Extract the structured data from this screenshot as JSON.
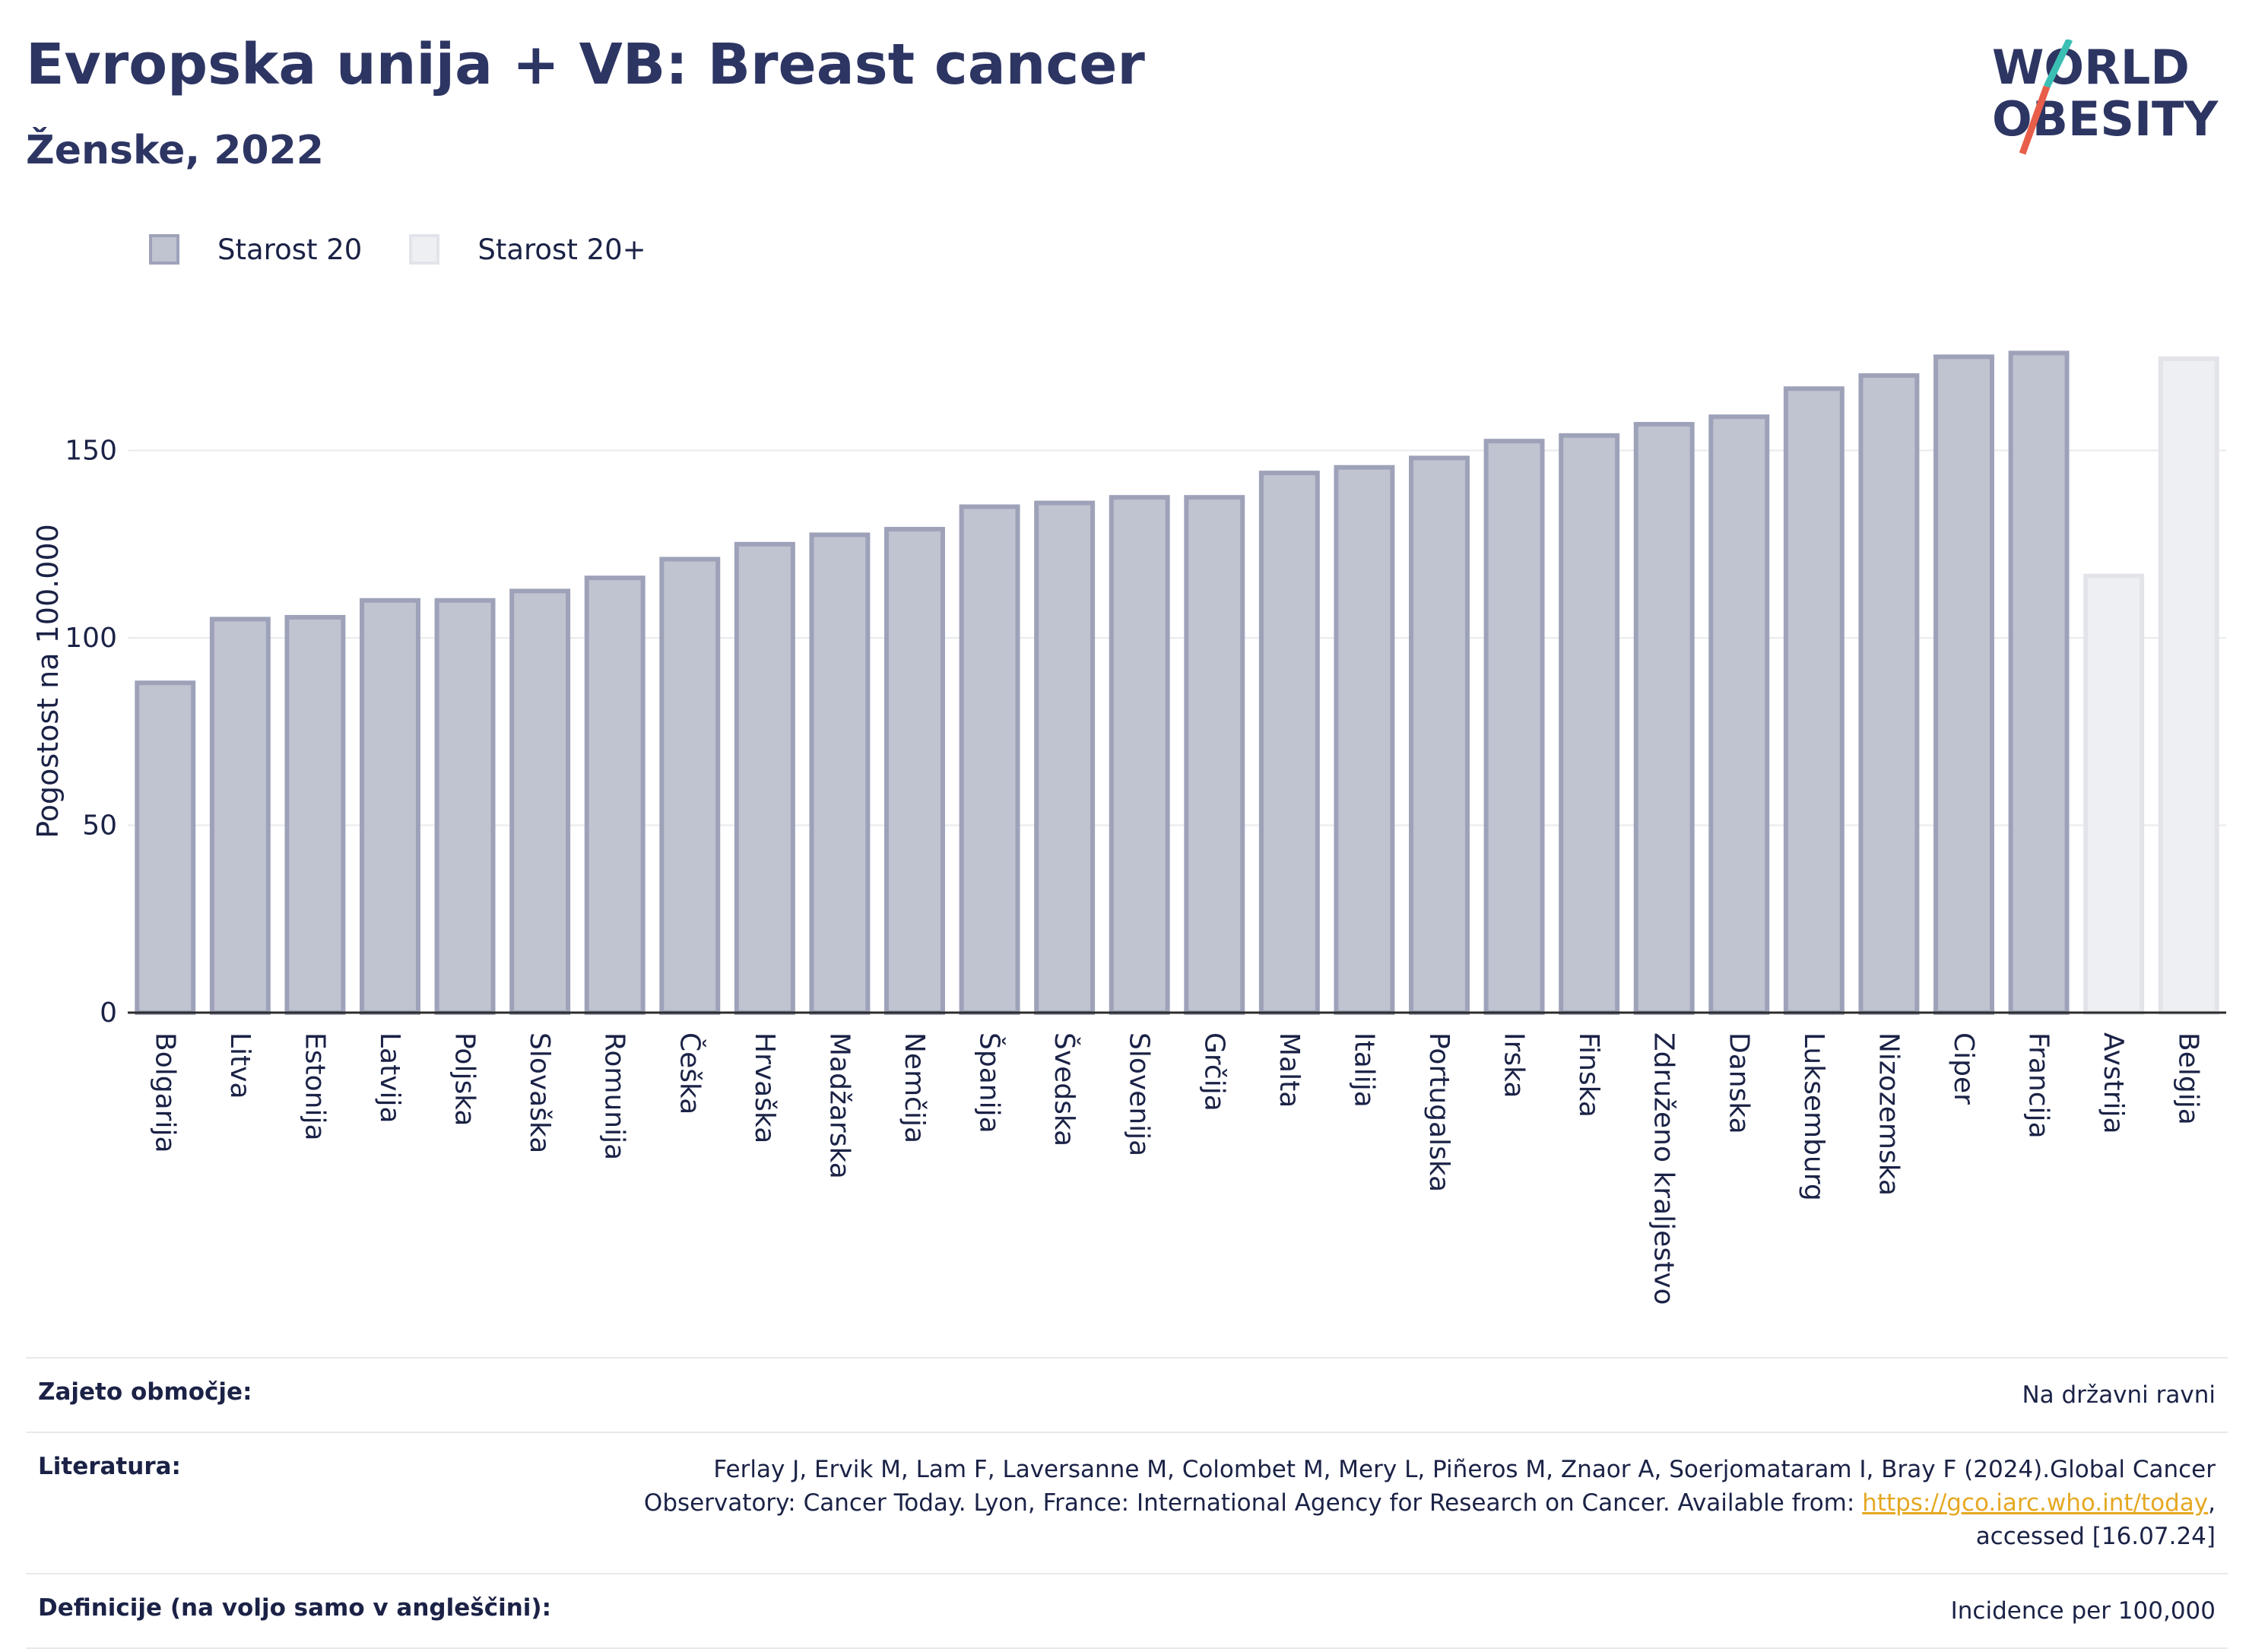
{
  "header": {
    "title": "Evropska unija + VB: Breast cancer",
    "subtitle": "Ženske, 2022",
    "logo_line1": "WORLD",
    "logo_line2": "OBESITY"
  },
  "colors": {
    "series1_fill": "#c0c3d0",
    "series1_stroke": "#9ea2b9",
    "series2_fill": "#eeeff3",
    "series2_stroke": "#e2e4ea",
    "title": "#2d3563",
    "logo_slash_top": "#3bbfb4",
    "logo_slash_bottom": "#e85e4a",
    "link": "#e5a823"
  },
  "chart_data": {
    "type": "bar",
    "title": "Evropska unija + VB: Breast cancer",
    "subtitle": "Ženske, 2022",
    "xlabel": "",
    "ylabel": "Pogostost na 100.000",
    "ylim": [
      0,
      185
    ],
    "yticks": [
      0,
      50,
      100,
      150
    ],
    "grid": true,
    "legend_position": "top-left",
    "categories": [
      "Bolgarija",
      "Litva",
      "Estonija",
      "Latvija",
      "Poljska",
      "Slovaška",
      "Romunija",
      "Češka",
      "Hrvaška",
      "Madžarska",
      "Nemčija",
      "Španija",
      "Švedska",
      "Slovenija",
      "Grčija",
      "Malta",
      "Italija",
      "Portugalska",
      "Irska",
      "Finska",
      "Združeno kraljestvo",
      "Danska",
      "Luksemburg",
      "Nizozemska",
      "Ciper",
      "Francija",
      "Avstrija",
      "Belgija"
    ],
    "series": [
      {
        "name": "Starost 20",
        "values": [
          88,
          105,
          105.5,
          110,
          110,
          112.5,
          116,
          121,
          125,
          127.5,
          129,
          135,
          136,
          137.5,
          137.5,
          144,
          145.5,
          148,
          152.5,
          154,
          157,
          159,
          166.5,
          170,
          175,
          176,
          null,
          null
        ]
      },
      {
        "name": "Starost 20+",
        "values": [
          null,
          null,
          null,
          null,
          null,
          null,
          null,
          null,
          null,
          null,
          null,
          null,
          null,
          null,
          null,
          null,
          null,
          null,
          null,
          null,
          null,
          null,
          null,
          null,
          null,
          null,
          116.5,
          174.5
        ]
      }
    ]
  },
  "legend": [
    {
      "label": "Starost 20"
    },
    {
      "label": "Starost 20+"
    }
  ],
  "footer": {
    "coverage_label": "Zajeto območje:",
    "coverage_value": "Na državni ravni",
    "references_label": "Literatura:",
    "references_text": "Ferlay J, Ervik M, Lam F, Laversanne M, Colombet M, Mery L, Piñeros M, Znaor A, Soerjomataram I, Bray F (2024).Global Cancer Observatory: Cancer Today. Lyon, France: International Agency for Research on Cancer. Available from: ",
    "references_link": "https://gco.iarc.who.int/today",
    "references_tail": ", accessed [16.07.24]",
    "definitions_label": "Definicije (na voljo samo v angleščini):",
    "definitions_value": "Incidence per 100,000"
  }
}
